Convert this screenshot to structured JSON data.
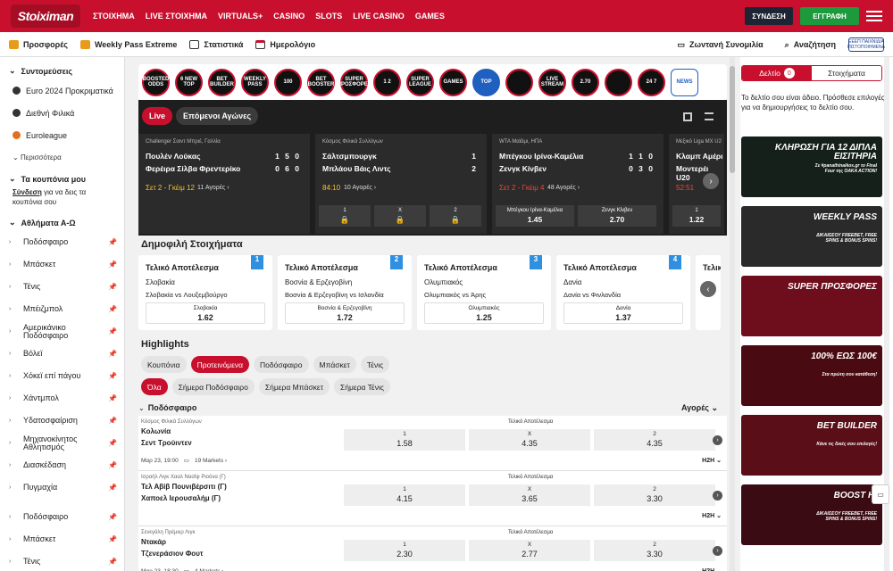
{
  "brand": {
    "logo": "Stoiximan",
    "accent": "#c8102e"
  },
  "topnav": [
    "ΣΤΟΙΧΗΜΑ",
    "LIVE ΣΤΟΙΧΗΜΑ",
    "VIRTUALS+",
    "CASINO",
    "SLOTS",
    "LIVE CASINO",
    "GAMES"
  ],
  "auth": {
    "login": "ΣΥΝΔΕΣΗ",
    "register": "ΕΓΓΡΑΦΗ"
  },
  "subnav": {
    "offers": "Προσφορές",
    "weekly": "Weekly Pass Extreme",
    "stats": "Στατιστικά",
    "calendar": "Ημερολόγιο",
    "chat": "Ζωντανή Συνομιλία",
    "search": "Αναζήτηση",
    "license": "ΕΕΕΠ ΠΑΙΧΝΙΔΙΑ ΠΙΣΤΟΠΟΙΗΜΕΝΑ"
  },
  "sidebar": {
    "shortcuts_title": "Συντομεύσεις",
    "shortcuts": [
      "Euro 2024 Προκριματικά",
      "Διεθνή Φιλικά",
      "Euroleague"
    ],
    "more": "Περισσότερα",
    "coupons_title": "Τα κουπόνια μου",
    "coupons_link": "Σύνδεση",
    "coupons_text": "για να δεις τα κουπόνια σου",
    "sports_title": "Αθλήματα Α-Ω",
    "sports": [
      "Ποδόσφαιρο",
      "Μπάσκετ",
      "Τένις",
      "Μπέιζμπολ",
      "Αμερικάνικο Ποδόσφαιρο",
      "Βόλεϊ",
      "Χόκεϊ επί πάγου",
      "Χάντμπολ",
      "Υδατοσφαίριση",
      "Μηχανοκίνητος Αθλητισμός",
      "Διασκέδαση",
      "Πυγμαχία"
    ],
    "sports2": [
      "Ποδόσφαιρο",
      "Μπάσκετ",
      "Τένις"
    ]
  },
  "circles": [
    "BOOSTED ODDS",
    "6 NEW TOP",
    "BET BUILDER",
    "WEEKLY PASS",
    "100",
    "BET BOOSTER",
    "SUPER ΠΡΟΣΦΟΡΕΣ",
    "1 2",
    "SUPER LEAGUE",
    "GAMES",
    "TOP",
    "",
    "LIVE STREAM",
    "2.70",
    "",
    "24 7",
    "NEWS"
  ],
  "live": {
    "tab_live": "Live",
    "tab_next": "Επόμενοι Αγώνες",
    "cards": [
      {
        "comp": "Challenger Σαιντ Μπριέ, Γαλλία",
        "t1": "Πουλέν Λούκας",
        "t2": "Φερέιρα Σίλβα Φρεντερίκο",
        "s1": "1 5 0",
        "s2": "0 6 0",
        "status": "Σετ 2 - Γκέιμ 12",
        "markets": "11 Αγορές"
      },
      {
        "comp": "Κόσμος Φιλικά Συλλόγων",
        "t1": "Σάλτσμπουργκ",
        "t2": "Μπλάου Βάις Λιντς",
        "s1": "1",
        "s2": "2",
        "status": "84:10",
        "markets": "10 Αγορές",
        "o1": "1",
        "o2": "X",
        "o3": "2"
      },
      {
        "comp": "WTA Μαϊάμι, ΗΠΑ",
        "t1": "Μπέγκου Ιρίνα-Καμέλια",
        "t2": "Ζενγκ Κίνβεν",
        "s1": "1 1 0",
        "s2": "0 3 0",
        "status": "Σετ 2 - Γκέιμ 4",
        "markets": "48 Αγορές",
        "n1": "Μπέγκου Ιρίνα-Καμέλια",
        "v1": "1.45",
        "n2": "Ζενγκ Κίνβεν",
        "v2": "2.70"
      },
      {
        "comp": "Μεξικό Liga MX U2",
        "t1": "Κλαμπ Αμέρι",
        "t2": "Μοντερέι U20",
        "status": "52:51",
        "o1": "1",
        "v1": "1.22"
      }
    ]
  },
  "popular": {
    "title": "Δημοφιλή Στοιχήματα",
    "cards": [
      {
        "n": "1",
        "h": "Τελικό Αποτέλεσμα",
        "l1": "Σλοβακία",
        "l2": "Σλοβακία vs Λουξεμβούργο",
        "on": "Σλοβακία",
        "ov": "1.62"
      },
      {
        "n": "2",
        "h": "Τελικό Αποτέλεσμα",
        "l1": "Βοσνία & Ερζεγοβίνη",
        "l2": "Βοσνία & Ερζεγοβίνη vs Ισλανδία",
        "on": "Βοσνία & Ερζεγοβίνη",
        "ov": "1.72"
      },
      {
        "n": "3",
        "h": "Τελικό Αποτέλεσμα",
        "l1": "Ολυμπιακός",
        "l2": "Ολυμπιακός vs Άρης",
        "on": "Ολυμπιακός",
        "ov": "1.25"
      },
      {
        "n": "4",
        "h": "Τελικό Αποτέλεσμα",
        "l1": "Δανία",
        "l2": "Δανία vs Φινλανδία",
        "on": "Δανία",
        "ov": "1.37"
      },
      {
        "h": "Τελικ"
      }
    ]
  },
  "highlights": {
    "title": "Highlights",
    "tabs": [
      "Κουπόνια",
      "Προτεινόμενα",
      "Ποδόσφαιρο",
      "Μπάσκετ",
      "Τένις"
    ],
    "filters": [
      "Όλα",
      "Σήμερα Ποδόσφαιρο",
      "Σήμερα Μπάσκετ",
      "Σήμερα Τένις"
    ]
  },
  "markets": {
    "sport": "Ποδόσφαιρο",
    "label": "Αγορές"
  },
  "events": [
    {
      "league": "Κόσμος Φιλικά Συλλόγων",
      "t1": "Κολωνία",
      "t2": "Σεντ Τρούιντεν",
      "mh": "Τελικό Αποτέλεσμα",
      "o1": "1.58",
      "o2": "4.35",
      "o3": "4.35",
      "time": "Μαρ 23, 19:00",
      "markets": "19 Markets",
      "h2h": "H2H"
    },
    {
      "league": "Ισραήλ Λιγκ Χααλ Νασίψ Ριοόνα (Γ)",
      "t1": "Τελ Αβίβ Πουνιβέρσιτι (Γ)",
      "t2": "Χαποελ Ιερουσαλήμ (Γ)",
      "mh": "Τελικό Αποτέλεσμα",
      "o1": "4.15",
      "o2": "3.65",
      "o3": "3.30",
      "h2h": "H2H"
    },
    {
      "league": "Σενεγάλη Πρέμιερ Λιγκ",
      "t1": "Ντακάρ",
      "t2": "Τζενεράσιον Φουτ",
      "mh": "Τελικό Αποτέλεσμα",
      "o1": "2.30",
      "o2": "2.77",
      "o3": "3.30",
      "time": "Μαρ 23, 18:30",
      "markets": "4 Markets",
      "h2h": "H2H"
    }
  ],
  "odd_labels": [
    "1",
    "X",
    "2"
  ],
  "betslip": {
    "tab1": "Δελτίο",
    "count": "0",
    "tab2": "Στοιχήματα",
    "empty": "Το δελτίο σου είναι άδειο. Πρόσθεσε επιλογές για να δημιουργήσεις το δελτίο σου.",
    "promos": [
      {
        "title": "ΚΛΗΡΩΣΗ ΓΙΑ 12 ΔΙΠΛΑ ΕΙΣΙΤΗΡΙΑ",
        "sub": "Σε #panathinaikos.gr το Final Four της OAKA ACTION!",
        "bg": "#15201a"
      },
      {
        "title": "WEEKLY PASS",
        "sub": "ΔΙΚΑΙΩΣΟΥ FREEBET, FREE SPINS & BONUS SPINS!",
        "bg": "#2a2a2a"
      },
      {
        "title": "SUPER ΠΡΟΣΦΟΡΕΣ",
        "sub": "",
        "bg": "#6e0d1b"
      },
      {
        "title": "100% ΕΩΣ 100€",
        "sub": "Στα πρώτη σου κατάθεση!",
        "bg": "#4a0a12"
      },
      {
        "title": "BET BUILDER",
        "sub": "Κάνε τις δικές σου επιλογές!",
        "bg": "#5a0f18"
      },
      {
        "title": "BOOST HI",
        "sub": "ΔΙΚΑΙΩΣΟΥ FREEBET, FREE SPINS & BONUS SPINS!",
        "bg": "#3a0b12"
      }
    ]
  }
}
